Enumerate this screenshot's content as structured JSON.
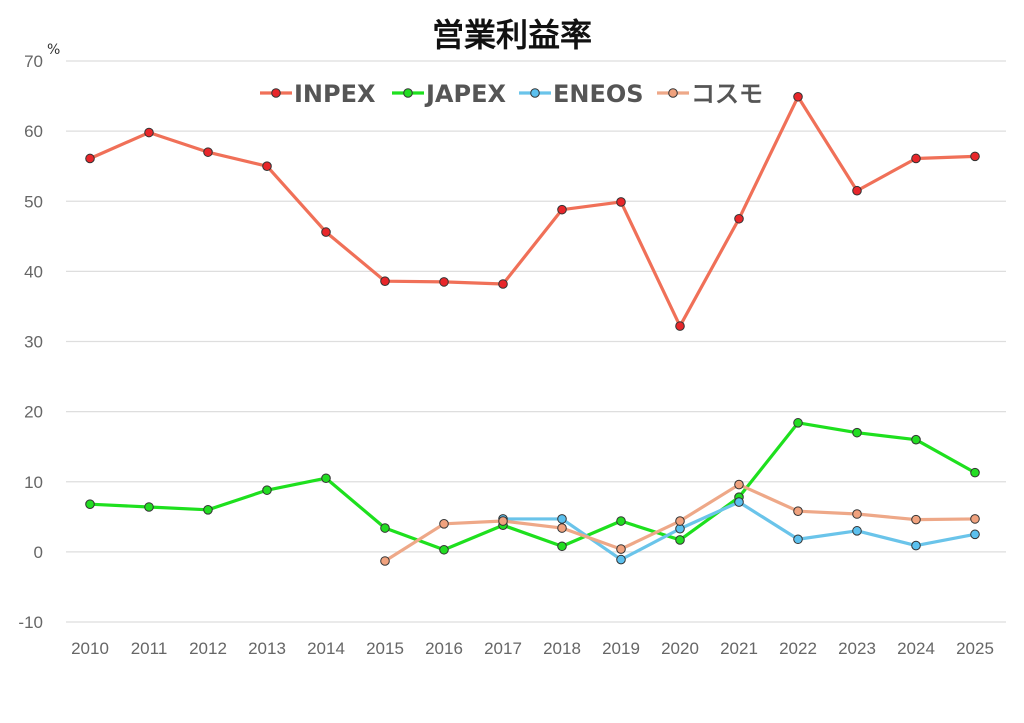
{
  "chart_data": {
    "type": "line",
    "title": "営業利益率",
    "ylabel": "%",
    "xlabel": "",
    "ylim": [
      -10,
      70
    ],
    "yticks": [
      70,
      60,
      50,
      40,
      30,
      20,
      10,
      0,
      -10
    ],
    "grid": true,
    "legend_position": "top-center",
    "x": [
      "2010",
      "2011",
      "2012",
      "2013",
      "2014",
      "2015",
      "2016",
      "2017",
      "2018",
      "2019",
      "2020",
      "2021",
      "2022",
      "2023",
      "2024",
      "2025"
    ],
    "series": [
      {
        "name": "INPEX",
        "line_color": "#f07058",
        "marker_color": "#e8262a",
        "values": [
          56.1,
          59.8,
          57.0,
          55.0,
          45.6,
          38.6,
          38.5,
          38.2,
          48.8,
          49.9,
          32.2,
          47.5,
          64.9,
          51.5,
          56.1,
          56.4
        ]
      },
      {
        "name": "JAPEX",
        "line_color": "#1ee01e",
        "marker_color": "#22dd22",
        "values": [
          6.8,
          6.4,
          6.0,
          8.8,
          10.5,
          3.4,
          0.3,
          3.8,
          0.8,
          4.4,
          1.7,
          7.8,
          18.4,
          17.0,
          16.0,
          11.3
        ]
      },
      {
        "name": "ENEOS",
        "line_color": "#6ac4ea",
        "marker_color": "#5bc0ee",
        "values": [
          null,
          null,
          null,
          null,
          null,
          null,
          null,
          4.7,
          4.7,
          -1.1,
          3.3,
          7.1,
          1.8,
          3.0,
          0.9,
          2.5
        ]
      },
      {
        "name": "コスモ",
        "line_color": "#eea888",
        "marker_color": "#f0a27e",
        "values": [
          null,
          null,
          null,
          null,
          null,
          -1.3,
          4.0,
          4.4,
          3.4,
          0.4,
          4.4,
          9.6,
          5.8,
          5.4,
          4.6,
          4.7
        ]
      }
    ]
  }
}
